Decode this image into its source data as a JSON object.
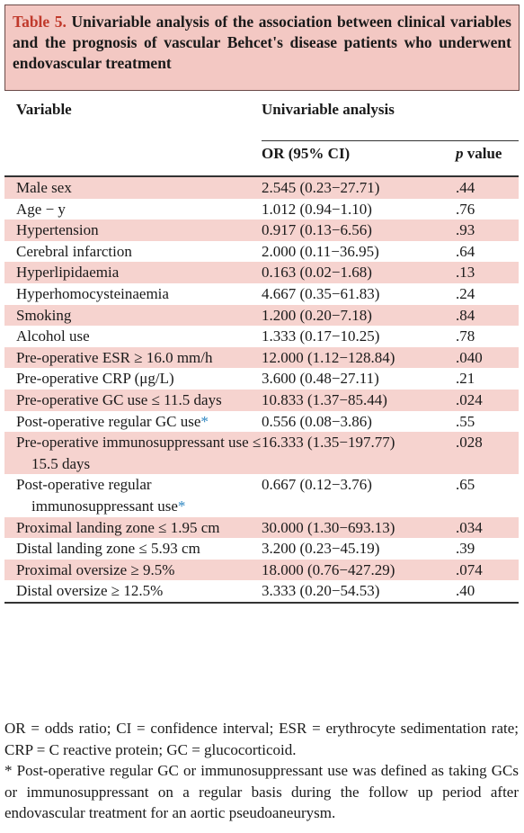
{
  "title": {
    "label": "Table 5.",
    "text": "Univariable analysis of the association between clinical variables and the prognosis of vascular Behcet's disease patients who underwent endovascular treatment"
  },
  "table": {
    "header": {
      "variable": "Variable",
      "group": "Univariable analysis",
      "or": "OR (95% CI)",
      "p": "p value"
    },
    "rows": [
      {
        "variable": "Male sex",
        "or": "2.545 (0.23−27.71)",
        "p": ".44"
      },
      {
        "variable": "Age − y",
        "or": "1.012 (0.94−1.10)",
        "p": ".76"
      },
      {
        "variable": "Hypertension",
        "or": "0.917 (0.13−6.56)",
        "p": ".93"
      },
      {
        "variable": "Cerebral infarction",
        "or": "2.000 (0.11−36.95)",
        "p": ".64"
      },
      {
        "variable": "Hyperlipidaemia",
        "or": "0.163 (0.02−1.68)",
        "p": ".13"
      },
      {
        "variable": "Hyperhomocysteinaemia",
        "or": "4.667 (0.35−61.83)",
        "p": ".24"
      },
      {
        "variable": "Smoking",
        "or": "1.200 (0.20−7.18)",
        "p": ".84"
      },
      {
        "variable": "Alcohol use",
        "or": "1.333 (0.17−10.25)",
        "p": ".78"
      },
      {
        "variable": "Pre-operative ESR ≥ 16.0 mm/h",
        "or": "12.000 (1.12−128.84)",
        "p": ".040"
      },
      {
        "variable": "Pre-operative CRP (μg/L)",
        "or": "3.600 (0.48−27.11)",
        "p": ".21"
      },
      {
        "variable": "Pre-operative GC use ≤ 11.5 days",
        "or": "10.833 (1.37−85.44)",
        "p": ".024"
      },
      {
        "variable": "Post-operative regular GC use",
        "marker": "*",
        "or": "0.556 (0.08−3.86)",
        "p": ".55"
      },
      {
        "variable": "Pre-operative immunosuppressant use ≤ 15.5 days",
        "or": "16.333 (1.35−197.77)",
        "p": ".028"
      },
      {
        "variable": "Post-operative regular immunosuppressant use",
        "marker": "*",
        "or": "0.667 (0.12−3.76)",
        "p": ".65"
      },
      {
        "variable": "Proximal landing zone ≤ 1.95 cm",
        "or": "30.000 (1.30−693.13)",
        "p": ".034"
      },
      {
        "variable": "Distal landing zone ≤ 5.93 cm",
        "or": "3.200 (0.23−45.19)",
        "p": ".39"
      },
      {
        "variable": "Proximal oversize ≥ 9.5%",
        "or": "18.000 (0.76−427.29)",
        "p": ".074"
      },
      {
        "variable": "Distal oversize ≥ 12.5%",
        "or": "3.333 (0.20−54.53)",
        "p": ".40"
      }
    ]
  },
  "footnotes": [
    "OR = odds ratio; CI = confidence interval; ESR = erythrocyte sedimentation rate; CRP = C reactive protein; GC = glucocorticoid.",
    "* Post-operative regular GC or immunosuppressant use was defined as taking GCs or immunosuppressant on a regular basis during the follow up period after endovascular treatment for an aortic pseudoaneurysm."
  ]
}
